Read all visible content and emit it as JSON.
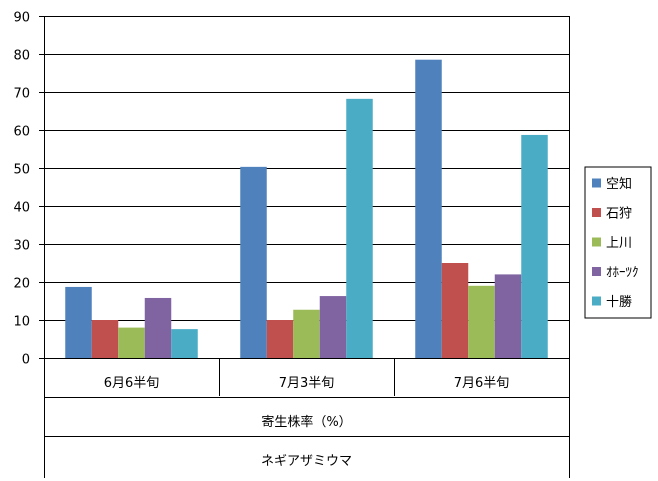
{
  "chart_data": {
    "type": "bar",
    "categories": [
      "6月6半旬",
      "7月3半旬",
      "7月6半旬"
    ],
    "series": [
      {
        "name": "空知",
        "color": "#4F81BD",
        "values": [
          18.7,
          50.3,
          78.5
        ]
      },
      {
        "name": "石狩",
        "color": "#C0504D",
        "values": [
          10.0,
          10.0,
          25.0
        ]
      },
      {
        "name": "上川",
        "color": "#9BBB59",
        "values": [
          8.0,
          12.7,
          19.0
        ]
      },
      {
        "name": "ｵﾎｰﾂｸ",
        "color": "#8064A2",
        "values": [
          15.8,
          16.3,
          22.0
        ]
      },
      {
        "name": "十勝",
        "color": "#4BACC6",
        "values": [
          7.6,
          68.2,
          58.7
        ]
      }
    ],
    "y_ticks": [
      0,
      10,
      20,
      30,
      40,
      50,
      60,
      70,
      80,
      90
    ],
    "ylim": [
      0,
      90
    ],
    "grid": true,
    "legend_position": "right",
    "xlabel_rows": [
      "寄生株率（%）",
      "ネギアザミウマ"
    ]
  }
}
